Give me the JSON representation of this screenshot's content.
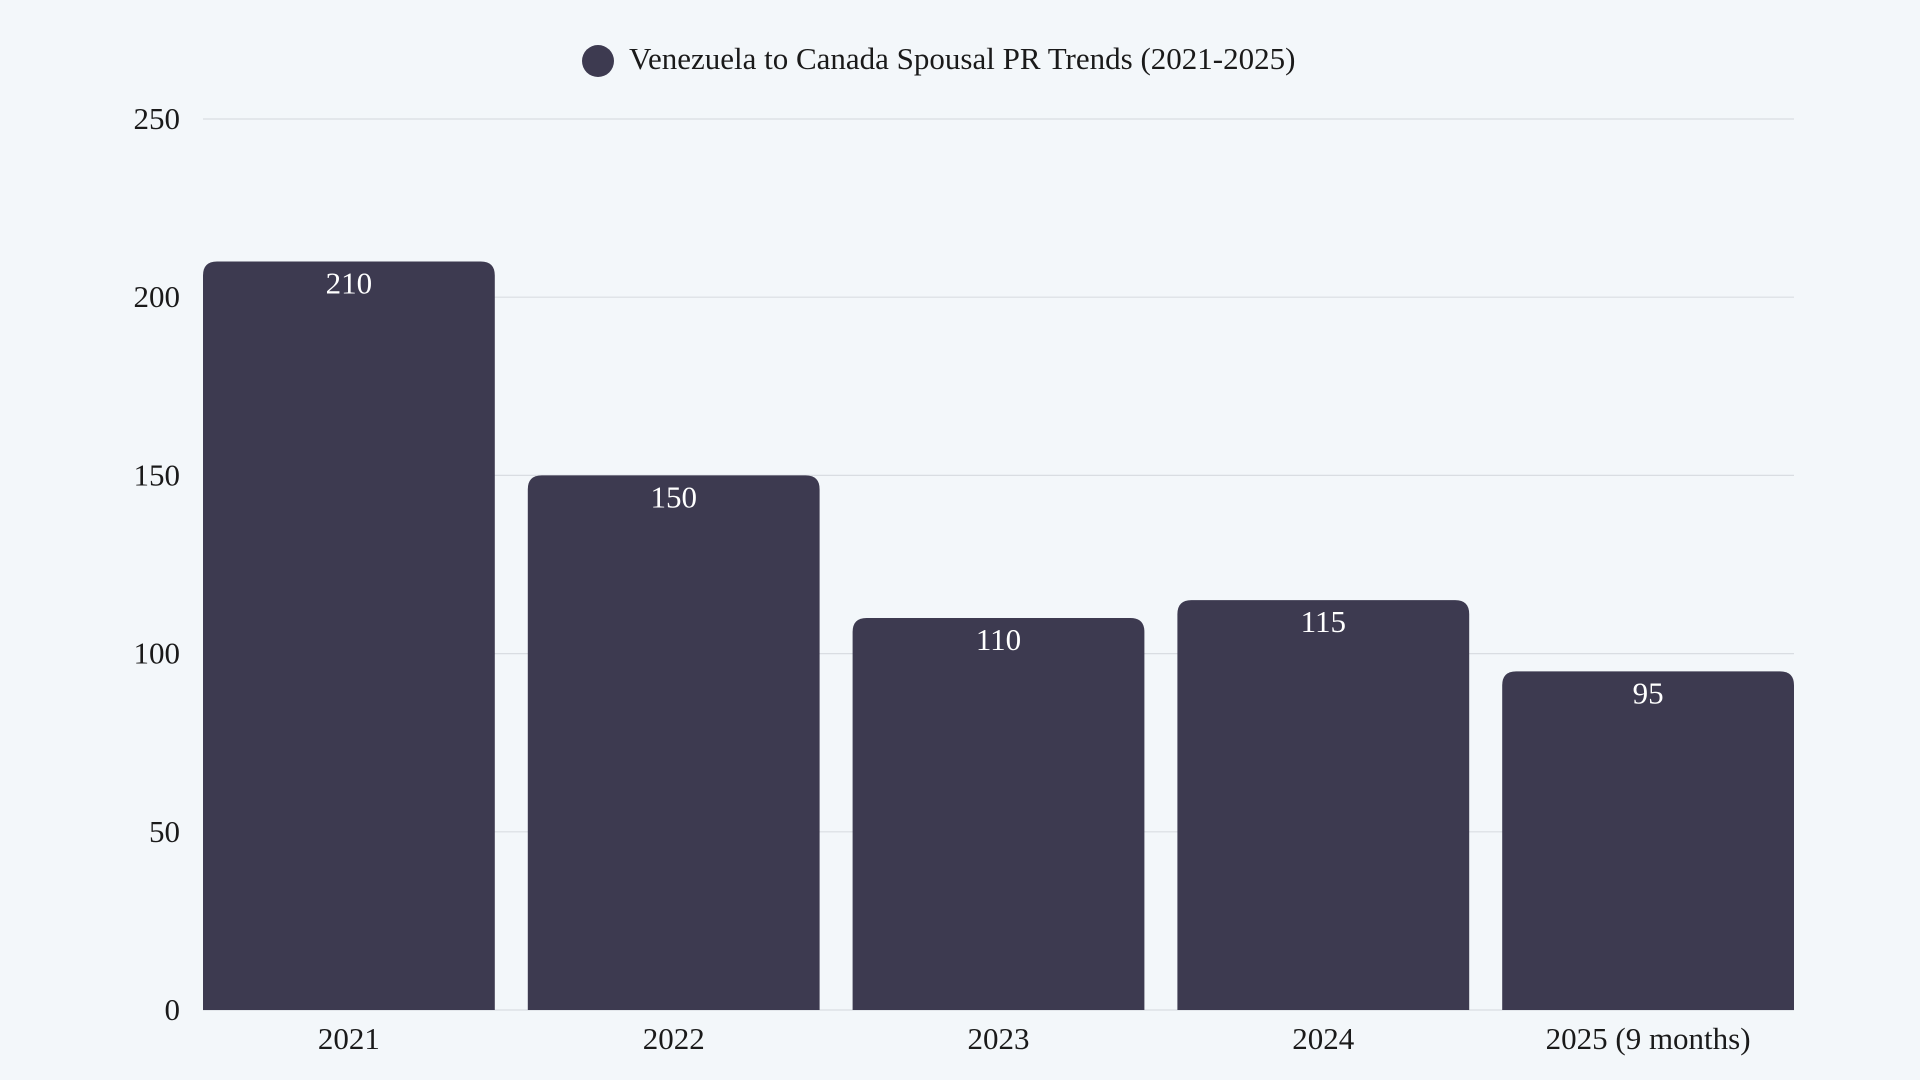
{
  "chart_data": {
    "type": "bar",
    "title": "",
    "legend": {
      "position": "top",
      "entries": [
        "Venezuela to Canada Spousal PR Trends (2021-2025)"
      ]
    },
    "categories": [
      "2021",
      "2022",
      "2023",
      "2024",
      "2025 (9 months)"
    ],
    "series": [
      {
        "name": "Venezuela to Canada Spousal PR Trends (2021-2025)",
        "values": [
          210,
          150,
          110,
          115,
          95
        ],
        "color": "#3d3a50"
      }
    ],
    "data_labels": [
      "210",
      "150",
      "110",
      "115",
      "95"
    ],
    "xlabel": "",
    "ylabel": "",
    "ylim": [
      0,
      250
    ],
    "yticks": [
      "0",
      "50",
      "100",
      "150",
      "200",
      "250"
    ],
    "grid": true,
    "background": "#f3f7fa"
  }
}
